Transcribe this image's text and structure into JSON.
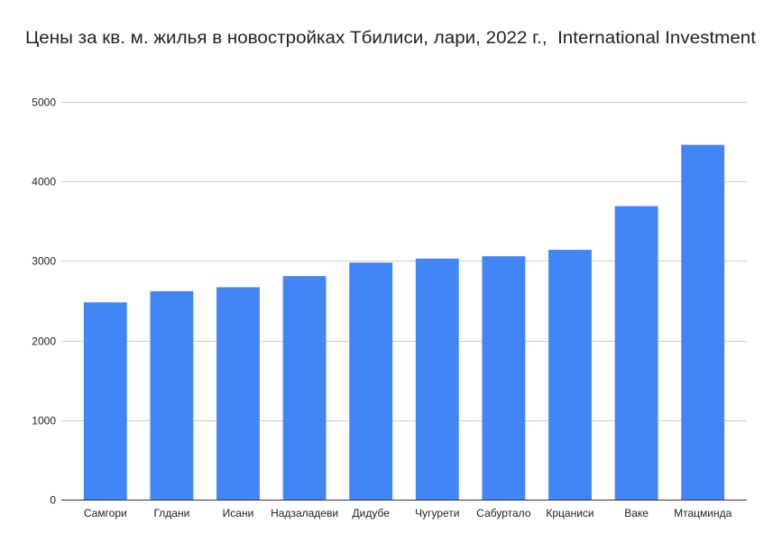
{
  "chart_data": {
    "type": "bar",
    "title": "Цены за кв. м. жилья в новостройках Тбилиси, лари, 2022 г.,  International Investment",
    "categories": [
      "Самгори",
      "Глдани",
      "Исани",
      "Надзаладеви",
      "Дидубе",
      "Чугурети",
      "Сабуртало",
      "Крцаниси",
      "Ваке",
      "Мтацминда"
    ],
    "values": [
      2480,
      2620,
      2670,
      2810,
      2980,
      3030,
      3060,
      3140,
      3690,
      4460
    ],
    "xlabel": "",
    "ylabel": "",
    "ylim": [
      0,
      5000
    ],
    "yticks": [
      0,
      1000,
      2000,
      3000,
      4000,
      5000
    ],
    "grid": true,
    "bar_color": "#4285F4",
    "grid_color": "#cccccc",
    "axis_color": "#333333"
  }
}
